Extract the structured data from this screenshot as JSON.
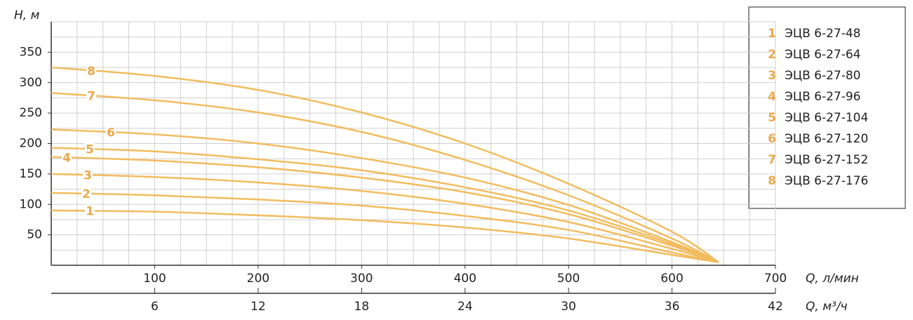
{
  "chart_data": {
    "type": "line",
    "y_label": "H, м",
    "x_label": "Q, л/мин",
    "x2_label": "Q, м³/ч",
    "x": [
      0,
      100,
      200,
      300,
      400,
      500,
      600,
      645
    ],
    "xlim": [
      0,
      700
    ],
    "xticks": [
      100,
      200,
      300,
      400,
      500,
      600,
      700
    ],
    "x2lim": [
      0,
      42
    ],
    "x2ticks": [
      6,
      12,
      18,
      24,
      30,
      36,
      42
    ],
    "ylim": [
      0,
      400
    ],
    "yticks": [
      50,
      100,
      150,
      200,
      250,
      300,
      350
    ],
    "x_grid": [
      25,
      50,
      75,
      100,
      125,
      150,
      175,
      200,
      225,
      250,
      275,
      300,
      325,
      350,
      375,
      400,
      425,
      450,
      475,
      500,
      525,
      550,
      575,
      600,
      625,
      650,
      675,
      700
    ],
    "y_grid": [
      25,
      50,
      75,
      100,
      125,
      150,
      175,
      200,
      225,
      250,
      275,
      300,
      325,
      350,
      375,
      400
    ],
    "grid": true,
    "legend_position": "upper right",
    "series": [
      {
        "label": "1",
        "name": "ЭЦВ 6-27-48",
        "color": "#f2bc5e",
        "values": [
          90,
          88,
          82,
          74,
          62,
          44,
          17,
          5
        ]
      },
      {
        "label": "2",
        "name": "ЭЦВ 6-27-64",
        "color": "#f2bc5e",
        "values": [
          119,
          115,
          108,
          98,
          81,
          58,
          21,
          5
        ]
      },
      {
        "label": "3",
        "name": "ЭЦВ 6-27-80",
        "color": "#f2bc5e",
        "values": [
          150,
          145,
          136,
          122,
          101,
          71,
          27,
          5
        ]
      },
      {
        "label": "4",
        "name": "ЭЦВ 6-27-96",
        "color": "#f2bc5e",
        "values": [
          178,
          172,
          161,
          144,
          120,
          84,
          32,
          5
        ]
      },
      {
        "label": "5",
        "name": "ЭЦВ 6-27-104",
        "color": "#f2bc5e",
        "values": [
          193,
          187,
          174,
          156,
          128,
          90,
          35,
          5
        ]
      },
      {
        "label": "6",
        "name": "ЭЦВ 6-27-120",
        "color": "#f2bc5e",
        "values": [
          223,
          215,
          200,
          176,
          144,
          99,
          38,
          5
        ]
      },
      {
        "label": "7",
        "name": "ЭЦВ 6-27-152",
        "color": "#f2bc5e",
        "values": [
          283,
          271,
          251,
          219,
          173,
          115,
          44,
          5
        ]
      },
      {
        "label": "8",
        "name": "ЭЦВ 6-27-176",
        "color": "#f2bc5e",
        "values": [
          325,
          311,
          288,
          251,
          200,
          134,
          55,
          5
        ]
      }
    ]
  }
}
